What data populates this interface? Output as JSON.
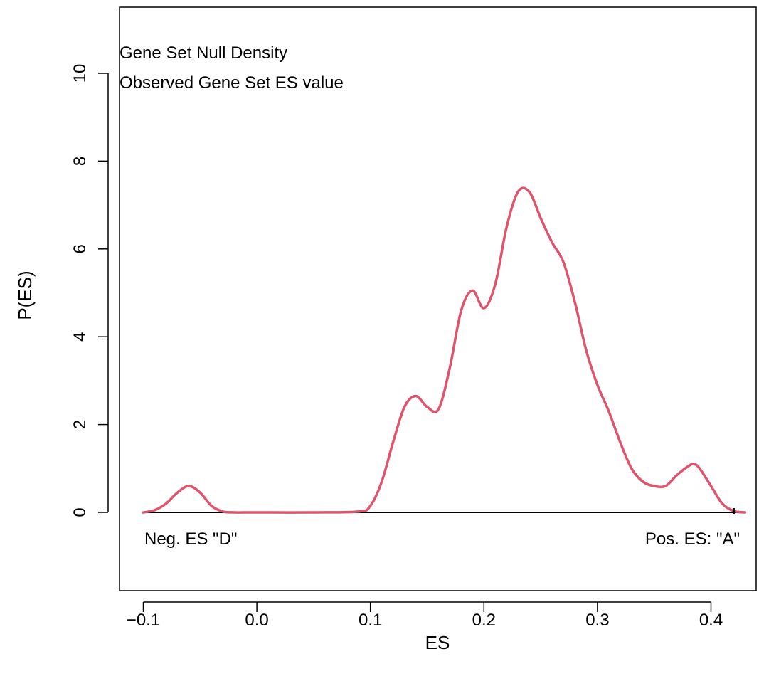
{
  "chart_data": {
    "type": "line",
    "title": "",
    "xlabel": "ES",
    "ylabel": "P(ES)",
    "xlim": [
      -0.1,
      0.43
    ],
    "ylim": [
      -1.45,
      11.6
    ],
    "x_ticks": [
      -0.1,
      0.0,
      0.1,
      0.2,
      0.3,
      0.4
    ],
    "x_tick_labels": [
      "−0.1",
      "0.0",
      "0.1",
      "0.2",
      "0.3",
      "0.4"
    ],
    "y_ticks": [
      0,
      2,
      4,
      6,
      8,
      10
    ],
    "y_tick_labels": [
      "0",
      "2",
      "4",
      "6",
      "8",
      "10"
    ],
    "grid": false,
    "legend": {
      "placement": "top-left",
      "entries": [
        "Gene Set Null Density",
        "Observed Gene Set ES value"
      ]
    },
    "annotations": {
      "left": "Neg. ES \"D\"",
      "right": "Pos. ES: \"A\""
    },
    "reference_line": {
      "y": 0
    },
    "observed_es": 0.42,
    "series": [
      {
        "color": "#DF536B",
        "x": [
          -0.1,
          -0.09,
          -0.08,
          -0.07,
          -0.06,
          -0.05,
          -0.04,
          -0.03,
          -0.02,
          0.0,
          0.05,
          0.09,
          0.1,
          0.11,
          0.12,
          0.13,
          0.14,
          0.15,
          0.16,
          0.17,
          0.18,
          0.19,
          0.2,
          0.21,
          0.22,
          0.23,
          0.24,
          0.25,
          0.26,
          0.27,
          0.28,
          0.29,
          0.3,
          0.31,
          0.32,
          0.33,
          0.34,
          0.35,
          0.36,
          0.37,
          0.38,
          0.385,
          0.39,
          0.4,
          0.41,
          0.42,
          0.43
        ],
        "values": [
          0.0,
          0.05,
          0.2,
          0.45,
          0.6,
          0.45,
          0.15,
          0.02,
          0.0,
          0.0,
          0.0,
          0.02,
          0.15,
          0.7,
          1.6,
          2.4,
          2.65,
          2.4,
          2.35,
          3.3,
          4.6,
          5.05,
          4.65,
          5.2,
          6.5,
          7.3,
          7.3,
          6.7,
          6.15,
          5.7,
          4.8,
          3.7,
          2.9,
          2.3,
          1.6,
          1.0,
          0.7,
          0.6,
          0.6,
          0.85,
          1.05,
          1.1,
          1.0,
          0.6,
          0.2,
          0.03,
          0.0
        ]
      }
    ]
  }
}
